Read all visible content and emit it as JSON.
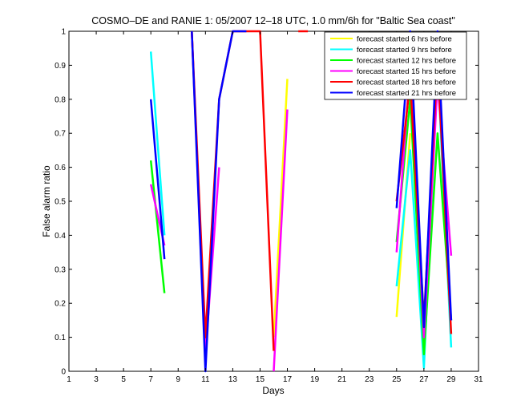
{
  "chart_data": {
    "type": "line",
    "title": "COSMO–DE and RANIE 1: 05/2007 12–18 UTC, 1.0 mm/6h for \"Baltic Sea coast\"",
    "xlabel": "Days",
    "ylabel": "False alarm ratio",
    "xlim": [
      1,
      31
    ],
    "ylim": [
      0,
      1
    ],
    "xticks": [
      "1",
      "3",
      "5",
      "7",
      "9",
      "11",
      "13",
      "15",
      "17",
      "19",
      "21",
      "23",
      "25",
      "27",
      "29",
      "31"
    ],
    "yticks": [
      "0",
      "0.1",
      "0.2",
      "0.3",
      "0.4",
      "0.5",
      "0.6",
      "0.7",
      "0.8",
      "0.9",
      "1"
    ],
    "legend_position": "top-right",
    "grid": false,
    "series": [
      {
        "name": "forecast started 6 hrs before",
        "color": "#ffff00",
        "segments": [
          [
            [
              10,
              1.0
            ],
            [
              11,
              0.02
            ]
          ],
          [
            [
              16,
              0.1
            ],
            [
              17,
              0.86
            ]
          ],
          [
            [
              25,
              0.16
            ],
            [
              26,
              0.7
            ]
          ]
        ]
      },
      {
        "name": "forecast started 9 hrs before",
        "color": "#00ffff",
        "segments": [
          [
            [
              7,
              0.94
            ],
            [
              8,
              0.4
            ]
          ],
          [
            [
              25,
              0.25
            ],
            [
              26,
              0.65
            ],
            [
              27,
              0.01
            ],
            [
              28,
              0.9
            ],
            [
              29,
              0.07
            ]
          ]
        ]
      },
      {
        "name": "forecast started 12 hrs before",
        "color": "#00ff00",
        "segments": [
          [
            [
              7,
              0.62
            ],
            [
              8,
              0.23
            ]
          ],
          [
            [
              25,
              0.38
            ],
            [
              26,
              0.8
            ],
            [
              27,
              0.05
            ],
            [
              28,
              0.7
            ],
            [
              29,
              0.15
            ]
          ]
        ]
      },
      {
        "name": "forecast started 15 hrs before",
        "color": "#ff00ff",
        "segments": [
          [
            [
              7,
              0.55
            ],
            [
              8,
              0.37
            ]
          ],
          [
            [
              10,
              1.0
            ],
            [
              11,
              0.05
            ],
            [
              12,
              0.6
            ]
          ],
          [
            [
              16,
              0.0
            ],
            [
              17,
              0.77
            ]
          ],
          [
            [
              25,
              0.35
            ],
            [
              26,
              0.9
            ],
            [
              27,
              0.1
            ],
            [
              28,
              0.85
            ],
            [
              29,
              0.34
            ]
          ]
        ]
      },
      {
        "name": "forecast started 18 hrs before",
        "color": "#ff0000",
        "segments": [
          [
            [
              10,
              1.0
            ],
            [
              11,
              0.1
            ],
            [
              12,
              0.8
            ],
            [
              13,
              1.0
            ],
            [
              15,
              1.0
            ],
            [
              16,
              0.06
            ]
          ],
          [
            [
              17.8,
              1.0
            ],
            [
              18.5,
              1.0
            ]
          ],
          [
            [
              25,
              0.5
            ],
            [
              26,
              0.85
            ],
            [
              27,
              0.15
            ],
            [
              28,
              0.92
            ],
            [
              29,
              0.11
            ]
          ]
        ]
      },
      {
        "name": "forecast started 21 hrs before",
        "color": "#0000ff",
        "segments": [
          [
            [
              7,
              0.8
            ],
            [
              8,
              0.33
            ]
          ],
          [
            [
              10,
              1.0
            ],
            [
              11,
              0.0
            ],
            [
              12,
              0.8
            ],
            [
              13,
              1.0
            ],
            [
              14,
              1.0
            ]
          ],
          [
            [
              25,
              0.48
            ],
            [
              26,
              1.0
            ],
            [
              27,
              0.13
            ],
            [
              28,
              1.0
            ],
            [
              29,
              0.15
            ]
          ]
        ]
      }
    ]
  }
}
